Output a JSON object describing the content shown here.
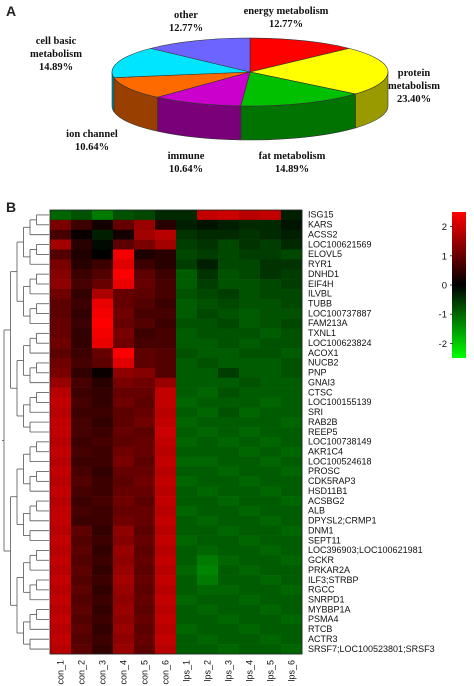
{
  "panels": [
    "A",
    "B"
  ],
  "chart_data": [
    {
      "type": "pie",
      "slices": [
        {
          "lines": [
            "energy metabolism",
            "12.77%"
          ],
          "value": 12.77,
          "color": "#ff0000"
        },
        {
          "lines": [
            "protein",
            "metabolism",
            "23.40%"
          ],
          "value": 23.4,
          "color": "#ffff00"
        },
        {
          "lines": [
            "fat metabolism",
            "14.89%"
          ],
          "value": 14.89,
          "color": "#00c000"
        },
        {
          "lines": [
            "immune",
            "10.64%"
          ],
          "value": 10.64,
          "color": "#cc00cc"
        },
        {
          "lines": [
            "ion channel",
            "10.64%"
          ],
          "value": 10.64,
          "color": "#ff6a00"
        },
        {
          "lines": [
            "cell basic",
            "metabolism",
            "14.89%"
          ],
          "value": 14.89,
          "color": "#00e5ff"
        },
        {
          "lines": [
            "other",
            "12.77%"
          ],
          "value": 12.77,
          "color": "#6d64ff"
        }
      ]
    },
    {
      "type": "heatmap",
      "columns": [
        "con_1",
        "con_2",
        "con_3",
        "con_4",
        "con_5",
        "con_6",
        "lps_1",
        "lps_2",
        "lps_3",
        "lps_4",
        "lps_5",
        "lps_6"
      ],
      "rows": [
        "ISG15",
        "KARS",
        "ACSS2",
        "LOC100621569",
        "ELOVL5",
        "RYR1",
        "DNHD1",
        "EIF4H",
        "ILVBL",
        "TUBB",
        "LOC100737887",
        "FAM213A",
        "TXNL1",
        "LOC100623824",
        "ACOX1",
        "NUCB2",
        "PNP",
        "GNAI3",
        "CTSC",
        "LOC100155139",
        "SRI",
        "RAB2B",
        "REEP5",
        "LOC100738149",
        "AKR1C4",
        "LOC100524618",
        "PROSC",
        "CDK5RAP3",
        "HSD11B1",
        "ACSBG2",
        "ALB",
        "DPYSL2;CRMP1",
        "DNM1",
        "SEPT11",
        "LOC396903;LOC100621981",
        "GCKR",
        "PRKAR2A",
        "ILF3;STRBP",
        "RGCC",
        "SNRPD1",
        "MYBBP1A",
        "PSMA4",
        "RTCB",
        "ACTR3",
        "SRSF7;LOC100523801;SRSF3"
      ],
      "colorbar": {
        "ticks": [
          2,
          1,
          0,
          -1,
          -2
        ],
        "min": -2.5,
        "max": 2.5,
        "colors": [
          "#00ff00",
          "#000000",
          "#ff0000"
        ]
      },
      "values": [
        [
          -1.0,
          -0.8,
          -1.2,
          -0.8,
          -0.7,
          -0.4,
          -0.4,
          1.9,
          2.0,
          1.8,
          1.9,
          -0.3
        ],
        [
          1.2,
          0.6,
          0.2,
          1.0,
          1.5,
          0.4,
          -0.3,
          -0.2,
          -0.3,
          -0.4,
          -0.4,
          -0.2
        ],
        [
          0.7,
          0.1,
          -0.3,
          0.2,
          1.6,
          1.8,
          -0.5,
          -0.4,
          -0.4,
          -0.5,
          -0.4,
          -0.3
        ],
        [
          1.6,
          0.4,
          -0.1,
          0.9,
          1.2,
          1.6,
          -0.6,
          -0.5,
          -0.7,
          -0.5,
          -0.6,
          -0.4
        ],
        [
          0.8,
          0.3,
          0.0,
          2.4,
          0.3,
          0.4,
          -0.7,
          -0.6,
          -0.7,
          -0.6,
          -0.6,
          -0.7
        ],
        [
          1.2,
          0.4,
          0.6,
          2.2,
          0.6,
          0.4,
          -0.6,
          -0.3,
          -0.7,
          -0.7,
          -0.5,
          -0.5
        ],
        [
          1.3,
          0.6,
          0.8,
          2.5,
          0.9,
          0.6,
          -0.9,
          -0.5,
          -0.8,
          -0.7,
          -0.5,
          -0.6
        ],
        [
          1.4,
          0.7,
          1.0,
          2.3,
          1.0,
          0.7,
          -0.9,
          -0.6,
          -0.8,
          -0.8,
          -0.7,
          -0.6
        ],
        [
          1.1,
          0.5,
          1.7,
          1.0,
          0.9,
          0.7,
          -0.8,
          -0.7,
          -0.6,
          -0.8,
          -0.7,
          -0.7
        ],
        [
          0.9,
          0.6,
          2.3,
          1.0,
          0.8,
          0.6,
          -0.9,
          -0.8,
          -0.7,
          -0.8,
          -0.8,
          -0.7
        ],
        [
          0.9,
          0.5,
          2.4,
          1.1,
          0.7,
          0.7,
          -0.9,
          -0.7,
          -0.8,
          -0.9,
          -0.8,
          -0.8
        ],
        [
          1.0,
          0.6,
          2.5,
          1.0,
          0.8,
          0.6,
          -0.8,
          -0.8,
          -0.7,
          -0.9,
          -0.8,
          -0.7
        ],
        [
          1.0,
          0.5,
          2.4,
          1.2,
          0.6,
          0.7,
          -0.9,
          -0.8,
          -0.8,
          -0.8,
          -0.9,
          -0.8
        ],
        [
          1.1,
          0.5,
          2.3,
          1.1,
          0.7,
          0.7,
          -0.9,
          -0.9,
          -0.8,
          -0.9,
          -0.8,
          -0.8
        ],
        [
          0.9,
          0.6,
          1.0,
          2.5,
          0.9,
          0.8,
          -0.8,
          -0.9,
          -0.9,
          -0.8,
          -0.8,
          -0.9
        ],
        [
          1.1,
          0.7,
          0.9,
          2.2,
          0.9,
          0.8,
          -0.9,
          -0.8,
          -0.9,
          -0.9,
          -0.9,
          -0.8
        ],
        [
          1.2,
          0.5,
          0.1,
          1.4,
          1.3,
          0.8,
          -0.9,
          -0.9,
          -0.6,
          -0.9,
          -0.9,
          -0.8
        ],
        [
          1.5,
          0.7,
          0.4,
          1.2,
          1.1,
          1.5,
          -0.9,
          -0.9,
          -0.9,
          -0.8,
          -0.9,
          -0.9
        ],
        [
          1.8,
          0.6,
          0.5,
          1.0,
          1.0,
          1.9,
          -0.9,
          -1.0,
          -0.8,
          -0.9,
          -0.9,
          -0.9
        ],
        [
          1.9,
          0.7,
          0.5,
          1.1,
          0.9,
          1.9,
          -1.0,
          -0.9,
          -0.9,
          -0.9,
          -1.0,
          -0.9
        ],
        [
          1.8,
          0.6,
          0.6,
          0.9,
          1.0,
          1.8,
          -0.9,
          -1.0,
          -0.8,
          -1.0,
          -0.9,
          -0.9
        ],
        [
          1.9,
          0.7,
          0.5,
          0.9,
          1.1,
          1.9,
          -1.0,
          -0.9,
          -0.9,
          -0.9,
          -0.9,
          -1.0
        ],
        [
          1.9,
          0.7,
          0.6,
          1.0,
          0.9,
          2.0,
          -0.9,
          -1.0,
          -0.9,
          -1.0,
          -0.9,
          -0.9
        ],
        [
          1.8,
          0.6,
          0.7,
          0.9,
          1.0,
          1.9,
          -1.0,
          -0.9,
          -1.0,
          -0.9,
          -1.0,
          -0.9
        ],
        [
          1.9,
          0.7,
          0.6,
          1.1,
          1.0,
          1.8,
          -0.9,
          -0.9,
          -0.9,
          -1.0,
          -0.9,
          -1.0
        ],
        [
          1.8,
          0.6,
          0.6,
          1.2,
          0.9,
          1.9,
          -1.0,
          -1.0,
          -0.9,
          -0.9,
          -1.0,
          -0.9
        ],
        [
          1.9,
          0.7,
          0.5,
          1.0,
          1.0,
          1.8,
          -0.9,
          -0.9,
          -1.0,
          -0.9,
          -0.9,
          -1.0
        ],
        [
          1.8,
          0.8,
          0.6,
          0.9,
          1.1,
          1.9,
          -1.0,
          -0.9,
          -0.9,
          -1.0,
          -0.9,
          -0.9
        ],
        [
          1.9,
          0.7,
          0.6,
          1.0,
          1.0,
          1.8,
          -0.9,
          -1.0,
          -0.9,
          -0.9,
          -1.0,
          -0.9
        ],
        [
          1.8,
          0.6,
          0.7,
          1.1,
          0.9,
          1.9,
          -0.9,
          -0.9,
          -1.0,
          -0.9,
          -0.9,
          -1.0
        ],
        [
          1.9,
          0.7,
          0.6,
          1.0,
          1.0,
          1.8,
          -1.0,
          -0.9,
          -0.9,
          -1.0,
          -0.9,
          -0.9
        ],
        [
          1.9,
          0.6,
          0.6,
          1.1,
          1.0,
          1.9,
          -0.9,
          -1.0,
          -0.9,
          -0.9,
          -1.0,
          -0.9
        ],
        [
          1.8,
          0.9,
          0.5,
          1.4,
          0.9,
          1.8,
          -0.9,
          -0.9,
          -1.0,
          -0.9,
          -0.9,
          -1.0
        ],
        [
          1.9,
          0.8,
          0.6,
          1.3,
          1.0,
          1.9,
          -1.0,
          -0.9,
          -0.9,
          -1.0,
          -0.9,
          -0.9
        ],
        [
          1.8,
          0.9,
          0.5,
          1.5,
          0.9,
          1.8,
          -0.9,
          -1.0,
          -0.9,
          -0.9,
          -1.0,
          -0.9
        ],
        [
          1.9,
          0.8,
          0.6,
          1.4,
          1.0,
          1.9,
          -0.9,
          -1.2,
          -1.0,
          -0.9,
          -0.9,
          -1.0
        ],
        [
          1.8,
          0.9,
          0.5,
          1.5,
          0.9,
          1.8,
          -1.0,
          -1.3,
          -0.9,
          -1.0,
          -0.9,
          -0.9
        ],
        [
          1.9,
          0.8,
          0.6,
          1.6,
          1.0,
          1.9,
          -0.9,
          -1.2,
          -0.9,
          -0.9,
          -1.0,
          -0.9
        ],
        [
          1.8,
          0.9,
          0.5,
          1.5,
          0.9,
          1.8,
          -0.9,
          -1.0,
          -1.0,
          -0.9,
          -0.9,
          -1.0
        ],
        [
          1.9,
          0.8,
          0.6,
          1.4,
          1.0,
          1.9,
          -1.0,
          -0.9,
          -0.9,
          -1.0,
          -0.9,
          -0.9
        ],
        [
          1.8,
          0.9,
          0.5,
          1.5,
          0.9,
          1.8,
          -0.9,
          -1.0,
          -0.9,
          -0.9,
          -1.0,
          -0.9
        ],
        [
          1.9,
          0.8,
          0.6,
          1.4,
          1.0,
          1.9,
          -0.9,
          -0.9,
          -1.0,
          -0.9,
          -0.9,
          -1.0
        ],
        [
          1.8,
          0.9,
          0.5,
          1.5,
          0.9,
          1.8,
          -1.0,
          -0.9,
          -0.9,
          -1.0,
          -0.9,
          -0.9
        ],
        [
          1.9,
          0.8,
          0.6,
          1.4,
          1.0,
          1.9,
          -0.9,
          -1.0,
          -0.9,
          -0.9,
          -1.0,
          -0.9
        ],
        [
          1.8,
          0.9,
          0.5,
          1.5,
          0.9,
          1.8,
          -0.9,
          -0.9,
          -1.0,
          -0.9,
          -0.9,
          -1.0
        ]
      ]
    }
  ]
}
